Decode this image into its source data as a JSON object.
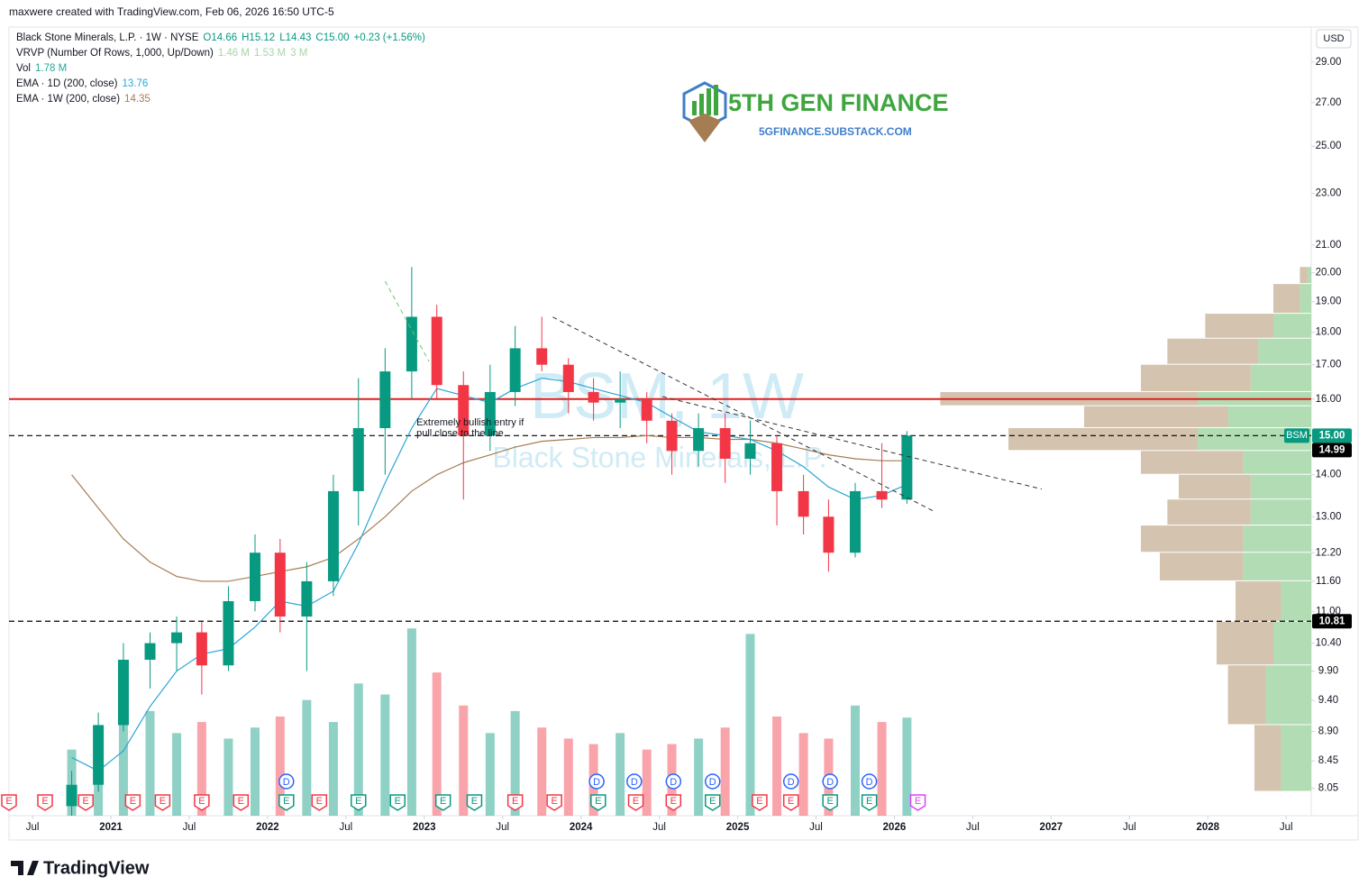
{
  "header": {
    "credit": "maxwere created with TradingView.com, Feb 06, 2026 16:50 UTC-5",
    "legend": [
      {
        "label": "Black Stone Minerals, L.P. · 1W · NYSE",
        "values": [
          "O14.66",
          "H15.12",
          "L14.43",
          "C15.00",
          "+0.23 (+1.56%)"
        ],
        "color": "#089981"
      },
      {
        "label": "VRVP (Number Of Rows, 1,000, Up/Down)",
        "values": [
          "1.46 M",
          "1.53 M",
          "3 M"
        ],
        "color": "#a5d6a7"
      },
      {
        "label": "Vol",
        "values": [
          "1.78 M"
        ],
        "color": "#26a69a"
      },
      {
        "label": "EMA · 1D (200, close)",
        "values": [
          "13.76"
        ],
        "color": "#2aa6d6"
      },
      {
        "label": "EMA · 1W (200, close)",
        "values": [
          "14.35"
        ],
        "color": "#a67c52"
      }
    ],
    "currency": "USD"
  },
  "logo": {
    "title": "5TH GEN FINANCE",
    "subtitle": "5GFINANCE.SUBSTACK.COM"
  },
  "footer": {
    "brand": "TradingView"
  },
  "chart_data": {
    "type": "candlestick",
    "watermark": {
      "symbol": "BSM, 1W",
      "name": "Black Stone Minerals, L.P."
    },
    "annotation": {
      "text": "Extremely bullish entry if pull close to the line.",
      "x": 2022.95,
      "y": 15.2
    },
    "log_scale": true,
    "xlim": [
      2020.35,
      2028.66
    ],
    "ylim": [
      7.67,
      30.85
    ],
    "volume_lim": [
      0,
      3.6
    ],
    "xticks": [
      {
        "value": 2020.5,
        "label": "Jul"
      },
      2021,
      {
        "value": 2021.5,
        "label": "Jul"
      },
      2022,
      {
        "value": 2022.5,
        "label": "Jul"
      },
      2023,
      {
        "value": 2023.5,
        "label": "Jul"
      },
      2024,
      {
        "value": 2024.5,
        "label": "Jul"
      },
      2025,
      {
        "value": 2025.5,
        "label": "Jul"
      },
      2026,
      {
        "value": 2026.5,
        "label": "Jul"
      },
      2027,
      {
        "value": 2027.5,
        "label": "Jul"
      },
      2028,
      {
        "value": 2028.5,
        "label": "Jul"
      }
    ],
    "yticks": [
      {
        "value": 29,
        "label": "29.00"
      },
      {
        "value": 27,
        "label": "27.00"
      },
      {
        "value": 25,
        "label": "25.00"
      },
      {
        "value": 23,
        "label": "23.00"
      },
      {
        "value": 21,
        "label": "21.00"
      },
      {
        "value": 20,
        "label": "20.00"
      },
      {
        "value": 19,
        "label": "19.00"
      },
      {
        "value": 18,
        "label": "18.00"
      },
      {
        "value": 17,
        "label": "17.00"
      },
      {
        "value": 16,
        "label": "16.00"
      },
      {
        "value": 14,
        "label": "14.00"
      },
      {
        "value": 13,
        "label": "13.00"
      },
      {
        "value": 12.2,
        "label": "12.20"
      },
      {
        "value": 11.6,
        "label": "11.60"
      },
      {
        "value": 11,
        "label": "11.00"
      },
      {
        "value": 10.4,
        "label": "10.40"
      },
      {
        "value": 9.9,
        "label": "9.90"
      },
      {
        "value": 9.4,
        "label": "9.40"
      },
      {
        "value": 8.9,
        "label": "8.90"
      },
      {
        "value": 8.45,
        "label": "8.45"
      },
      {
        "value": 8.05,
        "label": "8.05"
      }
    ],
    "up_color": "#089981",
    "down_color": "#f23645",
    "x": [
      2020.75,
      2020.92,
      2021.08,
      2021.25,
      2021.42,
      2021.58,
      2021.75,
      2021.92,
      2022.08,
      2022.25,
      2022.42,
      2022.58,
      2022.75,
      2022.92,
      2023.08,
      2023.25,
      2023.42,
      2023.58,
      2023.75,
      2023.92,
      2024.08,
      2024.25,
      2024.42,
      2024.58,
      2024.75,
      2024.92,
      2025.08,
      2025.25,
      2025.42,
      2025.58,
      2025.75,
      2025.92,
      2026.08
    ],
    "open": [
      7.8,
      8.1,
      9.0,
      10.1,
      10.4,
      10.6,
      10.0,
      11.2,
      12.2,
      10.9,
      11.6,
      13.6,
      15.2,
      16.8,
      18.5,
      16.4,
      15.0,
      16.2,
      17.5,
      17.0,
      16.2,
      15.9,
      16.0,
      15.4,
      14.6,
      15.2,
      14.4,
      14.8,
      13.6,
      13.0,
      12.2,
      13.6,
      13.4
    ],
    "high": [
      8.3,
      9.2,
      10.4,
      10.6,
      10.9,
      10.8,
      11.5,
      12.6,
      12.5,
      12.0,
      14.0,
      16.6,
      17.5,
      20.2,
      18.9,
      16.8,
      17.0,
      18.2,
      18.5,
      17.2,
      16.6,
      16.8,
      16.2,
      15.6,
      15.6,
      15.6,
      15.4,
      15.0,
      14.0,
      13.4,
      13.8,
      14.8,
      15.12
    ],
    "low": [
      7.6,
      8.0,
      8.9,
      9.6,
      9.9,
      9.5,
      9.9,
      11.0,
      10.6,
      9.9,
      11.3,
      12.8,
      14.0,
      16.0,
      16.0,
      13.4,
      14.6,
      15.8,
      16.8,
      15.6,
      15.4,
      15.2,
      14.8,
      14.0,
      14.2,
      13.8,
      14.0,
      12.8,
      12.6,
      11.8,
      12.1,
      13.2,
      13.3
    ],
    "close": [
      8.1,
      9.0,
      10.1,
      10.4,
      10.6,
      10.0,
      11.2,
      12.2,
      10.9,
      11.6,
      13.6,
      15.2,
      16.8,
      18.5,
      16.4,
      15.0,
      16.2,
      17.5,
      17.0,
      16.2,
      15.9,
      16.0,
      15.4,
      14.6,
      15.2,
      14.4,
      14.8,
      13.6,
      13.0,
      12.2,
      13.6,
      13.4,
      15.0
    ],
    "volume": [
      1.2,
      1.6,
      2.8,
      1.9,
      1.5,
      1.7,
      1.4,
      1.6,
      1.8,
      2.1,
      1.7,
      2.4,
      2.2,
      3.4,
      2.6,
      2.0,
      1.5,
      1.9,
      1.6,
      1.4,
      1.3,
      1.5,
      1.2,
      1.3,
      1.4,
      1.6,
      3.3,
      1.8,
      1.5,
      1.4,
      2.0,
      1.7,
      1.78
    ],
    "series": [
      {
        "name": "EMA · 1W (200, close)",
        "color": "#a67c52",
        "values": [
          14.0,
          13.2,
          12.5,
          12.0,
          11.7,
          11.6,
          11.6,
          11.7,
          11.8,
          11.9,
          12.1,
          12.5,
          13.0,
          13.6,
          14.0,
          14.3,
          14.5,
          14.7,
          14.85,
          14.9,
          14.95,
          14.95,
          15.0,
          14.95,
          14.95,
          14.9,
          14.9,
          14.8,
          14.65,
          14.5,
          14.4,
          14.35,
          14.35
        ]
      },
      {
        "name": "EMA · 1D (200, close)",
        "color": "#2aa6d6",
        "values": [
          8.5,
          8.3,
          8.6,
          9.3,
          9.9,
          10.2,
          10.3,
          10.7,
          11.2,
          11.1,
          11.4,
          12.4,
          13.8,
          15.2,
          16.3,
          16.1,
          15.9,
          16.3,
          16.6,
          16.5,
          16.3,
          16.1,
          15.9,
          15.5,
          15.1,
          15.0,
          14.9,
          14.6,
          14.2,
          13.7,
          13.4,
          13.5,
          13.76
        ]
      }
    ],
    "levels": [
      {
        "value": 16.0,
        "color": "#e01f1f",
        "style": "solid"
      },
      {
        "value": 15.0,
        "color": "#000000",
        "style": "dashed"
      },
      {
        "value": 10.81,
        "color": "#000000",
        "style": "dashed"
      }
    ],
    "trendlines": [
      {
        "x": [
          2023.82,
          2026.26
        ],
        "y": [
          18.49,
          13.11
        ],
        "color": "#333333"
      },
      {
        "x": [
          2024.52,
          2026.94
        ],
        "y": [
          16.07,
          13.65
        ],
        "color": "#333333"
      },
      {
        "x": [
          2022.75,
          2023.03
        ],
        "y": [
          19.7,
          17.1
        ],
        "color": "#6cc36c"
      }
    ],
    "price_tags": [
      {
        "value": 15.0,
        "label": "15.00",
        "name": "BSM",
        "color": "#089981"
      },
      {
        "value": 14.99,
        "label": "14.99",
        "color": "#000000"
      },
      {
        "value": 10.81,
        "label": "10.81",
        "color": "#000000"
      }
    ],
    "events": [
      {
        "x": 2020.35,
        "label": "E",
        "color": "#f23645"
      },
      {
        "x": 2020.58,
        "label": "E",
        "color": "#f23645"
      },
      {
        "x": 2020.84,
        "label": "E",
        "color": "#f23645"
      },
      {
        "x": 2021.14,
        "label": "E",
        "color": "#f23645"
      },
      {
        "x": 2021.33,
        "label": "E",
        "color": "#f23645"
      },
      {
        "x": 2021.58,
        "label": "E",
        "color": "#f23645"
      },
      {
        "x": 2021.83,
        "label": "E",
        "color": "#f23645"
      },
      {
        "x": 2022.12,
        "label": "E",
        "color": "#089981"
      },
      {
        "x": 2022.33,
        "label": "E",
        "color": "#f23645"
      },
      {
        "x": 2022.58,
        "label": "E",
        "color": "#089981"
      },
      {
        "x": 2022.83,
        "label": "E",
        "color": "#089981"
      },
      {
        "x": 2023.12,
        "label": "E",
        "color": "#089981"
      },
      {
        "x": 2023.32,
        "label": "E",
        "color": "#089981"
      },
      {
        "x": 2023.58,
        "label": "E",
        "color": "#f23645"
      },
      {
        "x": 2023.83,
        "label": "E",
        "color": "#f23645"
      },
      {
        "x": 2024.11,
        "label": "E",
        "color": "#089981"
      },
      {
        "x": 2024.35,
        "label": "E",
        "color": "#f23645"
      },
      {
        "x": 2024.59,
        "label": "E",
        "color": "#f23645"
      },
      {
        "x": 2024.84,
        "label": "E",
        "color": "#089981"
      },
      {
        "x": 2025.14,
        "label": "E",
        "color": "#f23645"
      },
      {
        "x": 2025.34,
        "label": "E",
        "color": "#f23645"
      },
      {
        "x": 2025.59,
        "label": "E",
        "color": "#089981"
      },
      {
        "x": 2025.84,
        "label": "E",
        "color": "#089981"
      },
      {
        "x": 2026.15,
        "label": "E",
        "color": "#e040fb"
      }
    ],
    "dividends": [
      {
        "x": 2022.12,
        "label": "D"
      },
      {
        "x": 2024.1,
        "label": "D"
      },
      {
        "x": 2024.34,
        "label": "D"
      },
      {
        "x": 2024.59,
        "label": "D"
      },
      {
        "x": 2024.84,
        "label": "D"
      },
      {
        "x": 2025.34,
        "label": "D"
      },
      {
        "x": 2025.59,
        "label": "D"
      },
      {
        "x": 2025.84,
        "label": "D"
      }
    ],
    "volume_profile": {
      "bins": [
        8.0,
        9.0,
        10.0,
        10.8,
        11.6,
        12.2,
        12.8,
        13.4,
        14.0,
        14.6,
        15.2,
        15.8,
        16.2,
        17.0,
        17.8,
        18.6,
        19.6,
        20.2
      ],
      "up": [
        8,
        12,
        10,
        8,
        18,
        18,
        16,
        16,
        18,
        30,
        22,
        30,
        16,
        14,
        10,
        3,
        1
      ],
      "down": [
        7,
        10,
        15,
        12,
        22,
        27,
        22,
        19,
        27,
        50,
        38,
        68,
        29,
        24,
        18,
        7,
        2
      ],
      "lim": [
        0,
        100
      ],
      "up_color": "#a5d6a7",
      "down_color": "#cdb9a0"
    }
  }
}
